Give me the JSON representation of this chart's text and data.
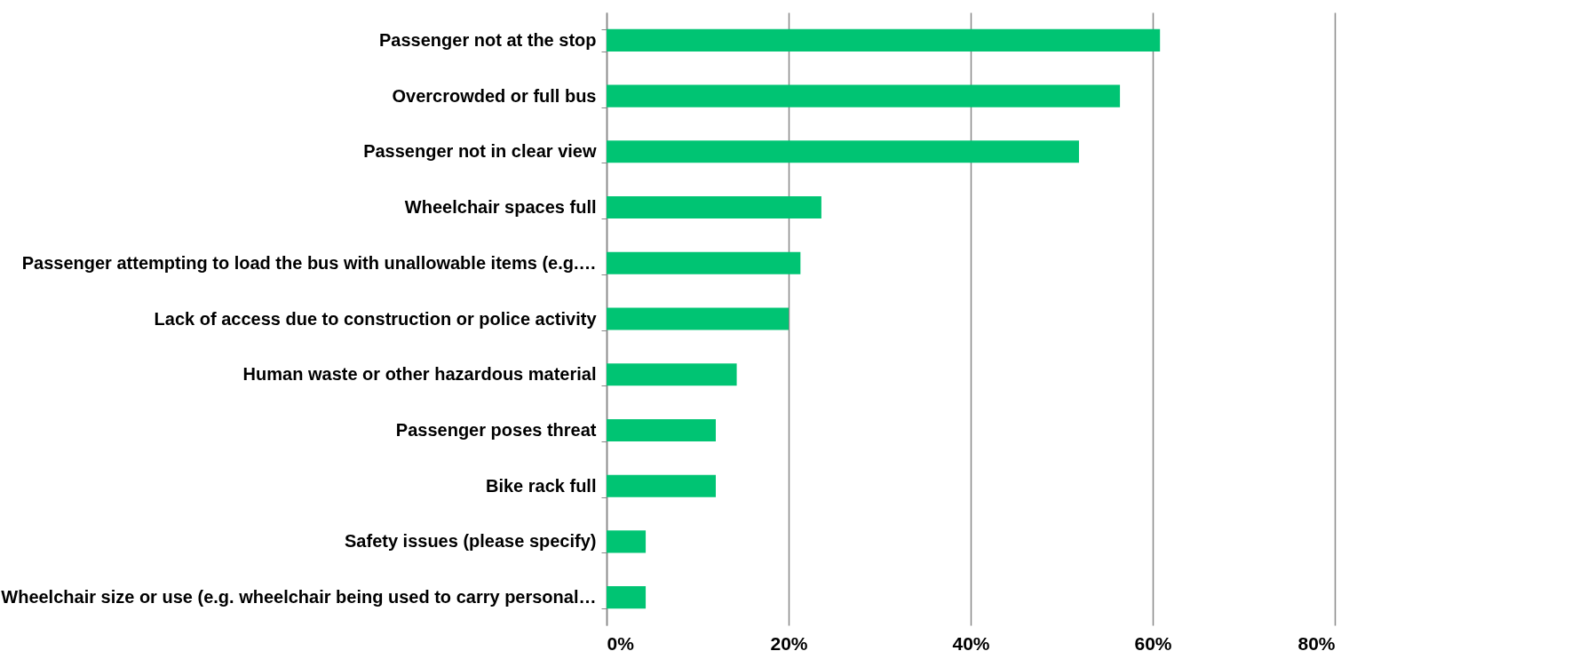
{
  "chart_data": {
    "type": "bar",
    "orientation": "horizontal",
    "categories": [
      "Passenger not at the stop",
      "Overcrowded or full bus",
      "Passenger not in clear view",
      "Wheelchair spaces full",
      "Passenger attempting to load the bus with unallowable items (e.g.…",
      "Lack of access due to construction or police activity",
      "Human waste or other hazardous material",
      "Passenger poses threat",
      "Bike rack full",
      "Safety issues (please specify)",
      "Wheelchair size or use (e.g. wheelchair being used to carry personal…"
    ],
    "values": [
      60.8,
      56.4,
      51.9,
      23.6,
      21.3,
      20.0,
      14.3,
      12.0,
      12.0,
      4.3,
      4.3
    ],
    "color": "#00c473",
    "xlim": [
      0,
      80
    ],
    "xticks": [
      {
        "value": 0,
        "label": "0%"
      },
      {
        "value": 20,
        "label": "20%"
      },
      {
        "value": 40,
        "label": "40%"
      },
      {
        "value": 60,
        "label": "60%"
      },
      {
        "value": 80,
        "label": "80%"
      }
    ],
    "grid": true
  }
}
